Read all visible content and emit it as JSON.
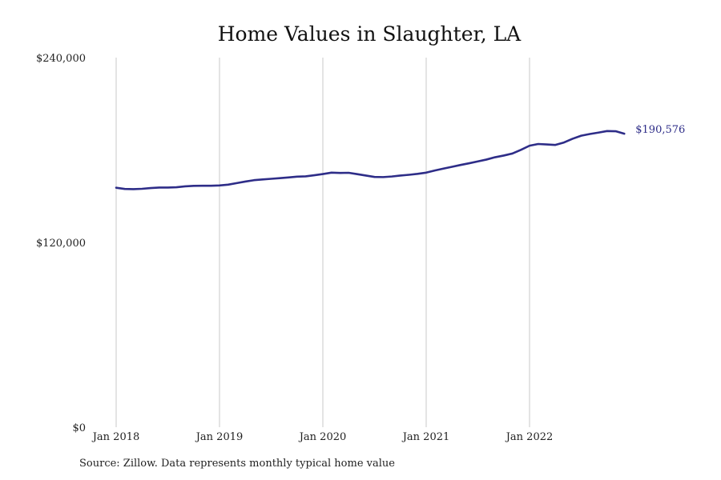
{
  "chart_data": {
    "type": "line",
    "title": "Home Values in Slaughter, LA",
    "xlabel": "",
    "ylabel": "",
    "ylim": [
      0,
      240000
    ],
    "yticks": [
      0,
      120000,
      240000
    ],
    "ytick_labels": [
      "$0",
      "$120,000",
      "$240,000"
    ],
    "xticks": [
      "Jan 2018",
      "Jan 2019",
      "Jan 2020",
      "Jan 2021",
      "Jan 2022"
    ],
    "grid": "vertical",
    "legend": "none",
    "line_color": "#2e2d88",
    "end_label": "$190,576",
    "series": [
      {
        "x": [
          "2018-01",
          "2018-02",
          "2018-03",
          "2018-04",
          "2018-05",
          "2018-06",
          "2018-07",
          "2018-08",
          "2018-09",
          "2018-10",
          "2018-11",
          "2018-12",
          "2019-01",
          "2019-02",
          "2019-03",
          "2019-04",
          "2019-05",
          "2019-06",
          "2019-07",
          "2019-08",
          "2019-09",
          "2019-10",
          "2019-11",
          "2019-12",
          "2020-01",
          "2020-02",
          "2020-03",
          "2020-04",
          "2020-05",
          "2020-06",
          "2020-07",
          "2020-08",
          "2020-09",
          "2020-10",
          "2020-11",
          "2020-12",
          "2021-01",
          "2021-02",
          "2021-03",
          "2021-04",
          "2021-05",
          "2021-06",
          "2021-07",
          "2021-08",
          "2021-09",
          "2021-10",
          "2021-11",
          "2021-12",
          "2022-01",
          "2022-02",
          "2022-03",
          "2022-04",
          "2022-05",
          "2022-06",
          "2022-07",
          "2022-08",
          "2022-09",
          "2022-10",
          "2022-11",
          "2022-12"
        ],
        "values": [
          155500,
          154700,
          154600,
          154800,
          155300,
          155600,
          155600,
          155800,
          156400,
          156700,
          156800,
          156800,
          157000,
          157500,
          158500,
          159500,
          160400,
          160900,
          161300,
          161700,
          162200,
          162700,
          162900,
          163600,
          164400,
          165300,
          165100,
          165200,
          164300,
          163400,
          162500,
          162400,
          162800,
          163400,
          163900,
          164500,
          165300,
          166700,
          167900,
          169100,
          170300,
          171400,
          172600,
          173800,
          175300,
          176400,
          177700,
          180100,
          182800,
          183900,
          183600,
          183300,
          184900,
          187300,
          189300,
          190400,
          191300,
          192300,
          192200,
          190576
        ]
      }
    ]
  },
  "source_note": "Source: Zillow. Data represents monthly typical home value"
}
